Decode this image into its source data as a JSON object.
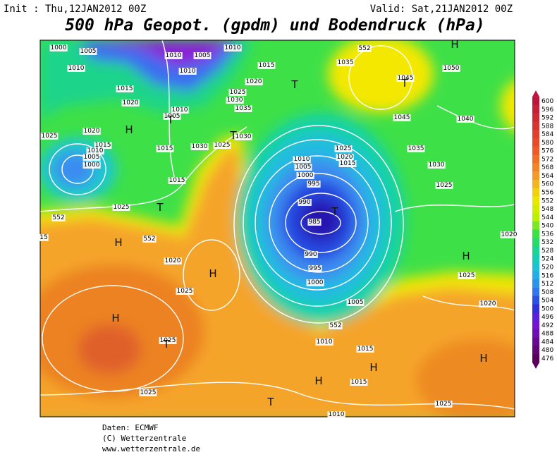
{
  "header": {
    "init": "Init : Thu,12JAN2012 00Z",
    "valid": "Valid: Sat,21JAN2012 00Z",
    "title": "500 hPa Geopot. (gpdm) und Bodendruck (hPa)"
  },
  "map": {
    "isobar_labels": [
      "1000",
      "1005",
      "1010",
      "1015",
      "1020",
      "1025",
      "1020",
      "1015",
      "1010",
      "1005",
      "1000",
      "1015",
      "1015",
      "1025",
      "1020",
      "1025",
      "1025",
      "1025",
      "1010",
      "1005",
      "1010",
      "1010",
      "1015",
      "1020",
      "1025",
      "1030",
      "1035",
      "1010",
      "1005",
      "1030",
      "1030",
      "1025",
      "1010",
      "1005",
      "1000",
      "995",
      "990",
      "985",
      "990",
      "995",
      "1000",
      "1005",
      "1010",
      "1015",
      "1015",
      "1010",
      "1025",
      "1020",
      "1025",
      "1025",
      "1030",
      "1035",
      "1040",
      "1045",
      "1045",
      "1050",
      "1035",
      "1020",
      "1025",
      "1020",
      "1015",
      "15",
      "552",
      "552",
      "552",
      "552"
    ],
    "highs_lows": [
      "H",
      "H",
      "H",
      "H",
      "H",
      "H",
      "H",
      "H",
      "H",
      "T",
      "T",
      "T",
      "T",
      "T",
      "T",
      "T",
      "T"
    ]
  },
  "colorbar": {
    "ticks": [
      600,
      596,
      592,
      588,
      584,
      580,
      576,
      572,
      568,
      564,
      560,
      556,
      552,
      548,
      544,
      540,
      536,
      532,
      528,
      524,
      520,
      516,
      512,
      508,
      504,
      500,
      496,
      492,
      488,
      484,
      480,
      476
    ]
  },
  "footer": {
    "lines": [
      "Daten: ECMWF",
      "(C) Wetterzentrale",
      "www.wetterzentrale.de"
    ]
  }
}
